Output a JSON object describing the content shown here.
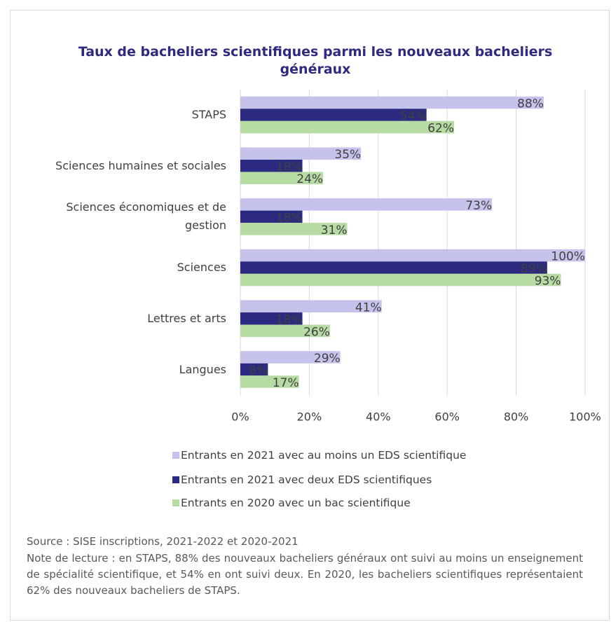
{
  "chart_data": {
    "type": "hbar",
    "title": "Taux de bacheliers scientifiques parmi les nouveaux bacheliers généraux",
    "categories": [
      "STAPS",
      "Sciences humaines et sociales",
      "Sciences économiques et de gestion",
      "Sciences",
      "Lettres et arts",
      "Langues"
    ],
    "series": [
      {
        "name": "Entrants en 2021 avec au moins un EDS scientifique",
        "color": "#c5c3ec",
        "values": [
          88,
          35,
          73,
          100,
          41,
          29
        ],
        "value_labels": [
          "88%",
          "35%",
          "73%",
          "100%",
          "41%",
          "29%"
        ]
      },
      {
        "name": "Entrants en 2021 avec deux EDS scientifiques",
        "color": "#2b2a80",
        "values": [
          54,
          18,
          18,
          89,
          18,
          8
        ],
        "value_labels": [
          "54%",
          "18%",
          "18%",
          "89%",
          "18%",
          "8%"
        ]
      },
      {
        "name": "Entrants en 2020 avec un bac scientifique",
        "color": "#b6dba3",
        "values": [
          62,
          24,
          31,
          93,
          26,
          17
        ],
        "value_labels": [
          "62%",
          "24%",
          "31%",
          "93%",
          "26%",
          "17%"
        ]
      }
    ],
    "xlim": [
      0,
      100
    ],
    "xticks": [
      {
        "value": 0,
        "label": "0%"
      },
      {
        "value": 20,
        "label": "20%"
      },
      {
        "value": 40,
        "label": "40%"
      },
      {
        "value": 60,
        "label": "60%"
      },
      {
        "value": 80,
        "label": "80%"
      },
      {
        "value": 100,
        "label": "100%"
      }
    ],
    "grid": true,
    "legend": "bottom",
    "source": "Source : SISE inscriptions, 2021-2022 et 2020-2021",
    "note": "Note de lecture : en STAPS, 88% des nouveaux bacheliers généraux ont suivi au moins un enseignement de spécialité scientifique, et 54% en ont suivi deux. En 2020, les bacheliers scientifiques représentaient 62% des nouveaux bacheliers de STAPS."
  }
}
